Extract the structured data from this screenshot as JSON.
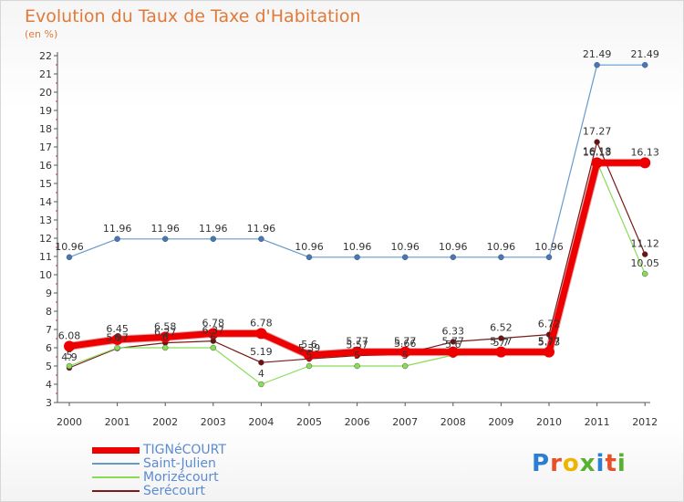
{
  "header": {
    "title": "Evolution du Taux de Taxe d'Habitation",
    "unit": "(en %)"
  },
  "chart_data": {
    "type": "line",
    "title": "Evolution du Taux de Taxe d'Habitation",
    "ylabel": "(en %)",
    "xlabel": "",
    "ylim": [
      3,
      22
    ],
    "yticks": [
      3,
      4,
      5,
      6,
      7,
      8,
      9,
      10,
      11,
      12,
      13,
      14,
      15,
      16,
      17,
      18,
      19,
      20,
      21,
      22
    ],
    "x": [
      "2000",
      "2001",
      "2002",
      "2003",
      "2004",
      "2005",
      "2006",
      "2007",
      "2008",
      "2009",
      "2010",
      "2011",
      "2012"
    ],
    "grid": false,
    "legend_position": "bottom-left",
    "series": [
      {
        "name": "Serécourt",
        "color": "#7a1a1a",
        "marker": "#6e1010",
        "width": 1.2,
        "values": [
          4.9,
          5.97,
          6.27,
          6.37,
          5.19,
          5.39,
          5.57,
          5.66,
          6.33,
          6.52,
          6.72,
          17.27,
          11.12
        ],
        "labels": [
          "4.9",
          "5.97",
          "6.27",
          "6.37",
          "5.19",
          "5.39",
          "5.57",
          "5.66",
          "6.33",
          "6.52",
          "6.72",
          "17.27",
          "11.12"
        ]
      },
      {
        "name": "Morizécourt",
        "color": "#88dd55",
        "marker": "#88dd55",
        "width": 1.2,
        "values": [
          5.0,
          6.0,
          6.0,
          6.0,
          4.0,
          5.0,
          5.0,
          5.0,
          5.6,
          5.7,
          5.73,
          16.18,
          10.05
        ],
        "labels": [
          "5",
          "6",
          "6",
          "6",
          "4",
          "5",
          "5",
          "5",
          "5.6",
          "5.7",
          "5.73",
          "16.18",
          "10.05"
        ]
      },
      {
        "name": "Saint-Julien",
        "color": "#6699cc",
        "marker": "#4477bb",
        "width": 1.2,
        "values": [
          10.96,
          11.96,
          11.96,
          11.96,
          11.96,
          10.96,
          10.96,
          10.96,
          10.96,
          10.96,
          10.96,
          21.49,
          21.49
        ],
        "labels": [
          "10.96",
          "11.96",
          "11.96",
          "11.96",
          "11.96",
          "10.96",
          "10.96",
          "10.96",
          "10.96",
          "10.96",
          "10.96",
          "21.49",
          "21.49"
        ]
      },
      {
        "name": "TIGNéCOURT",
        "color": "#ee0000",
        "marker": "#ee0000",
        "width": 7,
        "values": [
          6.08,
          6.45,
          6.58,
          6.78,
          6.78,
          5.6,
          5.77,
          5.77,
          5.77,
          5.77,
          5.77,
          16.13,
          16.13
        ],
        "labels": [
          "6.08",
          "6.45",
          "6.58",
          "6.78",
          "6.78",
          "5.6",
          "5.77",
          "5.77",
          "5.77",
          "5.77",
          "5.77",
          "16.13",
          "16.13"
        ]
      }
    ]
  },
  "legend": {
    "items": [
      {
        "label": "TIGNéCOURT",
        "color": "#ee0000",
        "height": 7
      },
      {
        "label": "Saint-Julien",
        "color": "#6699cc",
        "height": 2
      },
      {
        "label": "Morizécourt",
        "color": "#88dd55",
        "height": 2
      },
      {
        "label": "Serécourt",
        "color": "#7a1a1a",
        "height": 2
      }
    ]
  },
  "logo": {
    "letters": [
      "P",
      "r",
      "o",
      "x",
      "i",
      "t",
      "i"
    ],
    "colors": [
      "#2a7fd4",
      "#e8502a",
      "#f0b400",
      "#58b030",
      "#2a7fd4",
      "#e8502a",
      "#58b030"
    ]
  }
}
